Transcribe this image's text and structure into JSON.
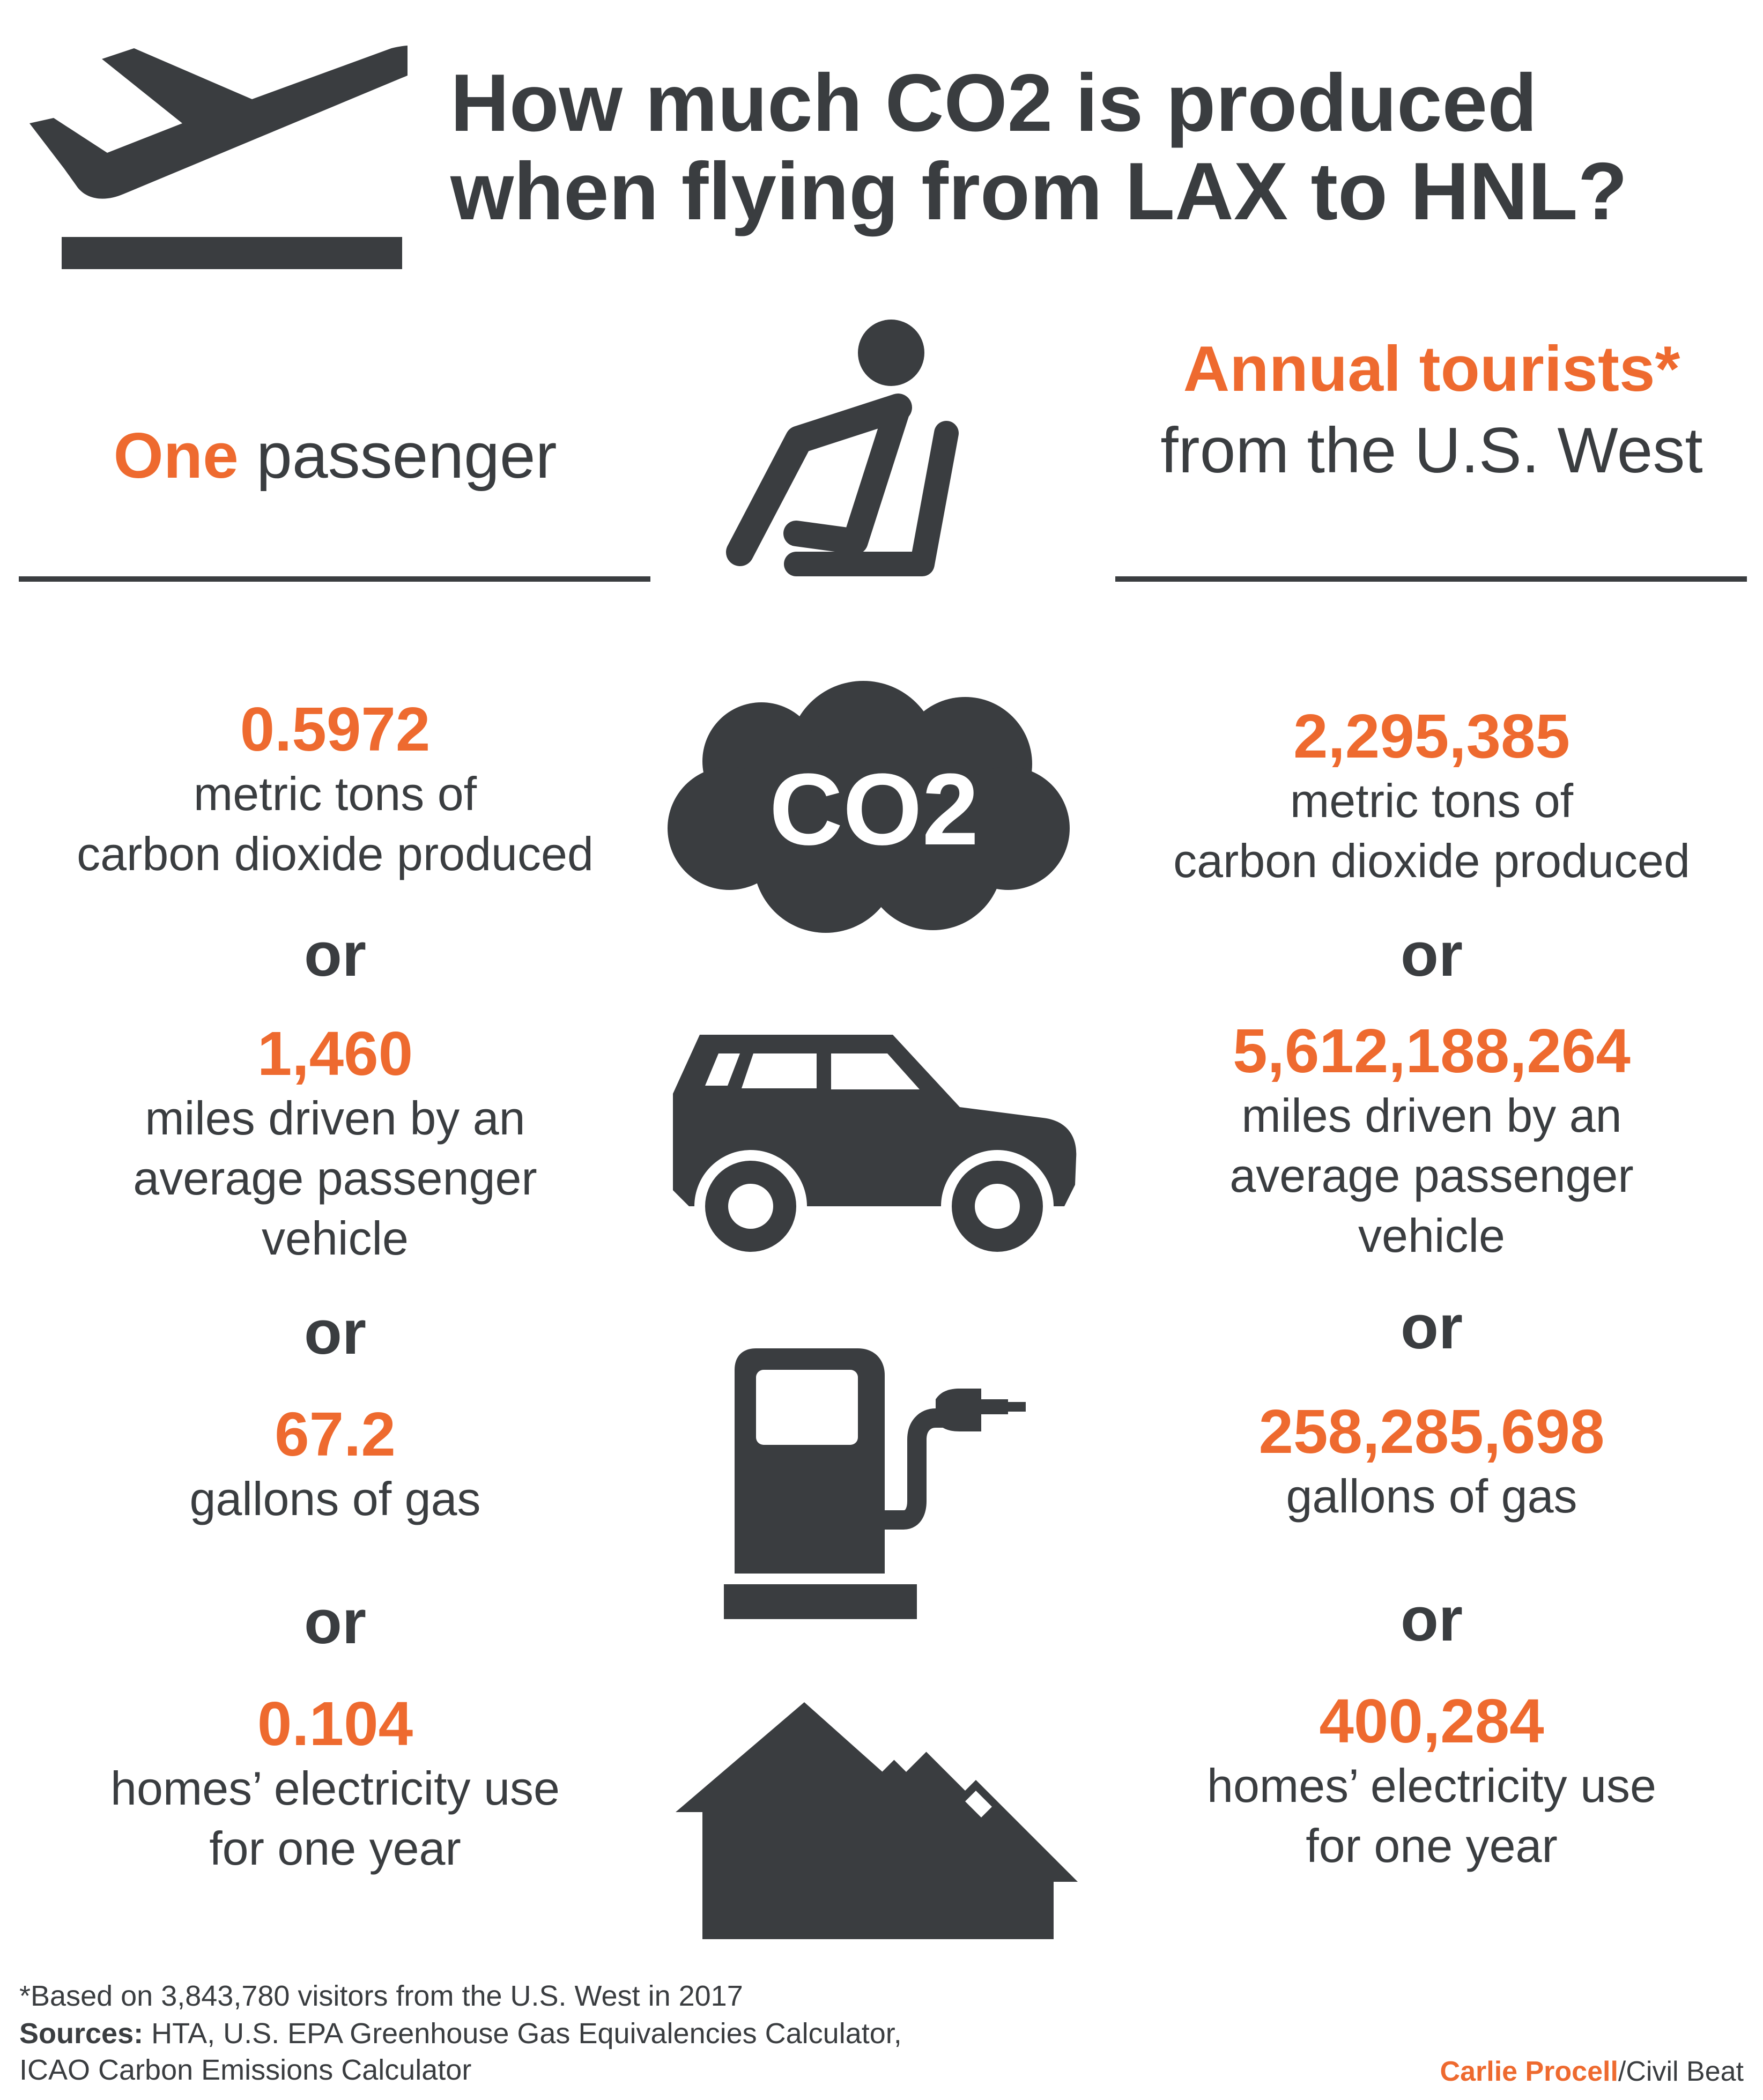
{
  "title": {
    "line1": "How much CO2 is produced",
    "line2": "when flying from LAX to HNL?"
  },
  "left_header": {
    "highlight": "One",
    "text": " passenger"
  },
  "right_header": {
    "highlight": "Annual tourists*",
    "text": "from the U.S. West"
  },
  "or_label": "or",
  "co2_badge": "CO2",
  "left": {
    "co2_value": "0.5972",
    "co2_desc_1": "metric tons of",
    "co2_desc_2": "carbon dioxide produced",
    "miles_value": "1,460",
    "miles_desc_1": "miles driven by an",
    "miles_desc_2": "average passenger",
    "miles_desc_3": "vehicle",
    "gas_value": "67.2",
    "gas_desc": "gallons of gas",
    "homes_value": "0.104",
    "homes_desc_1": "homes’ electricity use",
    "homes_desc_2": "for one year"
  },
  "right": {
    "co2_value": "2,295,385",
    "co2_desc_1": "metric tons of",
    "co2_desc_2": "carbon dioxide produced",
    "miles_value": "5,612,188,264",
    "miles_desc_1": "miles driven by an",
    "miles_desc_2": "average passenger",
    "miles_desc_3": "vehicle",
    "gas_value": "258,285,698",
    "gas_desc": "gallons of gas",
    "homes_value": "400,284",
    "homes_desc_1": "homes’ electricity use",
    "homes_desc_2": "for one year"
  },
  "footnote": "*Based on 3,843,780 visitors from the U.S. West in 2017",
  "sources_label": "Sources:",
  "sources_line1": " HTA, U.S. EPA Greenhouse Gas Equivalencies Calculator,",
  "sources_line2": "ICAO Carbon Emissions Calculator",
  "credit_name": "Carlie Procell",
  "credit_org": "/Civil Beat",
  "icons": [
    "airplane-takeoff-icon",
    "seated-passenger-icon",
    "co2-cloud-icon",
    "car-icon",
    "gas-pump-icon",
    "houses-icon"
  ],
  "colors": {
    "accent": "#ee6a2f",
    "dark": "#3a3d40",
    "background": "#ffffff"
  }
}
